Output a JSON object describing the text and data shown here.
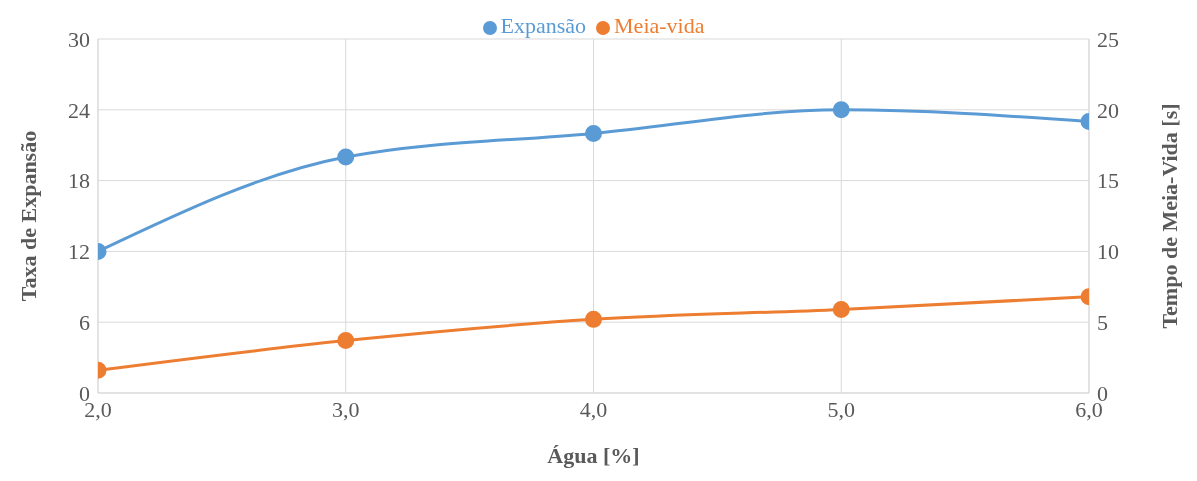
{
  "chart_data": {
    "type": "line",
    "xlabel": "Água [%]",
    "ylabel": "Taxa de Expansão",
    "y2label": "Tempo de Meia-Vida  [s]",
    "x": [
      2,
      3,
      4,
      5,
      6
    ],
    "series": [
      {
        "name": "Expansão",
        "color": "#5b9bd5",
        "values": [
          12,
          20,
          22,
          24,
          23
        ]
      },
      {
        "name": "Meia-vida",
        "color": "#ed7d31",
        "values": [
          1.6,
          3.7,
          5.2,
          5.9,
          6.8
        ],
        "axis": "y2"
      }
    ],
    "xlim": [
      2,
      6
    ],
    "xticks": [
      {
        "value": 2,
        "label": "2,0"
      },
      {
        "value": 3,
        "label": "3,0"
      },
      {
        "value": 4,
        "label": "4,0"
      },
      {
        "value": 5,
        "label": "5,0"
      },
      {
        "value": 6,
        "label": "6,0"
      }
    ],
    "ylim": [
      0,
      30
    ],
    "yticks": [
      0,
      6,
      12,
      18,
      24,
      30
    ],
    "y2lim": [
      0,
      25
    ],
    "y2ticks": [
      0,
      5,
      10,
      15,
      20,
      25
    ],
    "grid": true,
    "legend": "top",
    "marker": "circle",
    "line_style": "solid"
  }
}
